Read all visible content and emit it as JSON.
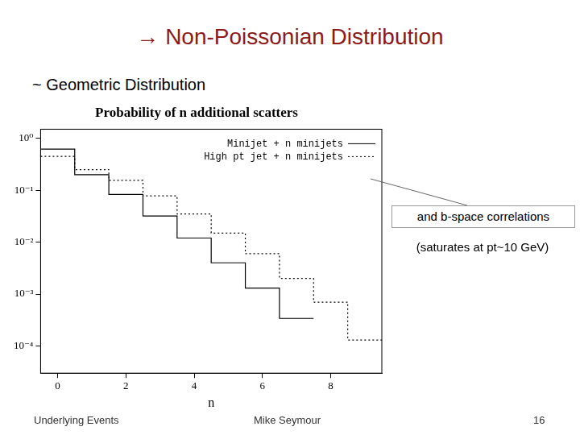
{
  "title": "→ Non-Poissonian Distribution",
  "subtitle": "~ Geometric Distribution",
  "annotations": [
    "and b-space correlations",
    "(saturates at pt~10 GeV)"
  ],
  "footer": {
    "left": "Underlying Events",
    "center": "Mike Seymour",
    "right": "16"
  },
  "chart_data": {
    "type": "line",
    "title": "Probability of n additional scatters",
    "x_label": "n",
    "bins": [
      -0.5,
      0.5,
      1.5,
      2.5,
      3.5,
      4.5,
      5.5,
      6.5,
      7.5,
      8.5,
      9.5
    ],
    "series": [
      {
        "name": "Minijet + n minijets",
        "color": "#000000",
        "line_style": "solid",
        "values": [
          0.62,
          0.2,
          0.083,
          0.032,
          0.012,
          0.004,
          0.0013,
          0.00034,
          null,
          null
        ]
      },
      {
        "name": "High pt jet + n minijets",
        "color": "#000000",
        "line_style": "dotted",
        "values": [
          0.45,
          0.25,
          0.155,
          0.078,
          0.035,
          0.015,
          0.006,
          0.002,
          0.0007,
          0.00013
        ]
      }
    ],
    "xlim": [
      -0.5,
      9.5
    ],
    "xticks": [
      0,
      2,
      4,
      6,
      8
    ],
    "ylim": [
      3e-05,
      1.5
    ],
    "yticks": [
      {
        "value": 0.0001,
        "label": "10⁻⁴"
      },
      {
        "value": 0.001,
        "label": "10⁻³"
      },
      {
        "value": 0.01,
        "label": "10⁻²"
      },
      {
        "value": 0.1,
        "label": "10⁻¹"
      },
      {
        "value": 1,
        "label": "10⁰"
      }
    ],
    "log": "y",
    "grid": false,
    "legend": "upper right"
  }
}
